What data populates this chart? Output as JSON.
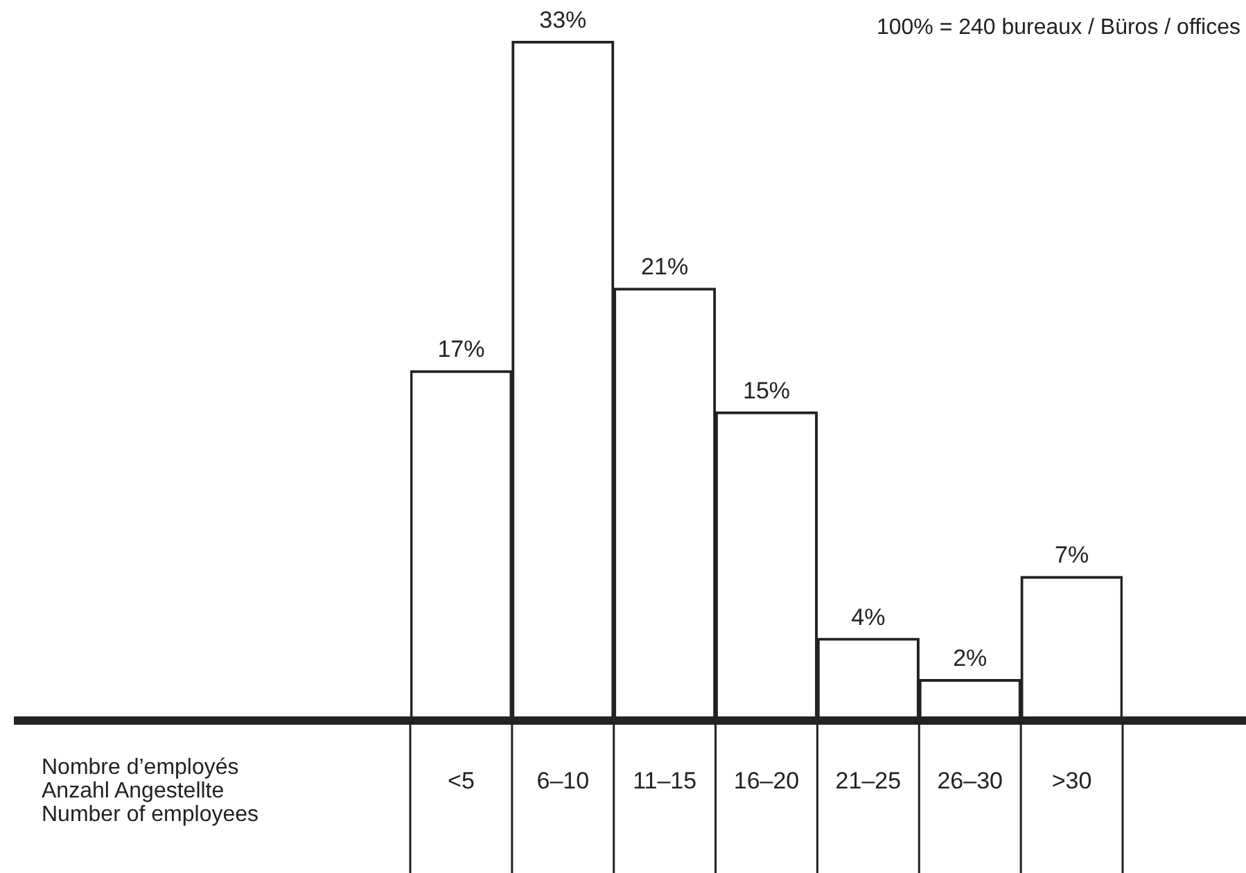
{
  "chart_data": {
    "type": "bar",
    "categories": [
      "<5",
      "6–10",
      "11–15",
      "16–20",
      "21–25",
      "26–30",
      ">30"
    ],
    "values": [
      17,
      33,
      21,
      15,
      4,
      2,
      7
    ],
    "value_labels": [
      "17%",
      "33%",
      "21%",
      "15%",
      "4%",
      "2%",
      "7%"
    ],
    "color": "#ffffff",
    "annotations": [
      "100% = 240 bureaux / Büros / offices",
      "Nombre d’employés\nAnzahl Angestellte\nNumber of employees"
    ],
    "grid": false,
    "legend": false
  }
}
